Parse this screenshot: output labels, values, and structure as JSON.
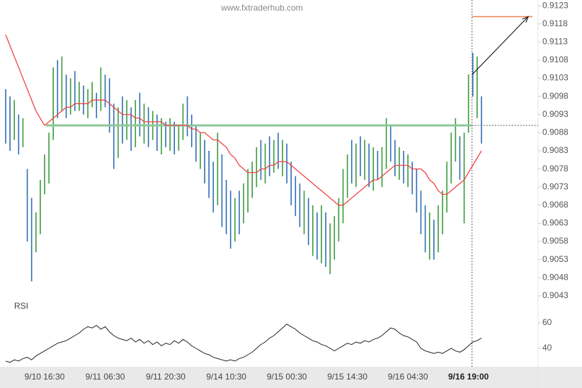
{
  "chart_data": {
    "type": "ohlc",
    "title": "www.fxtraderhub.com",
    "up_color": "#3a9a3a",
    "down_color": "#2f6db3",
    "categories": [
      null,
      null,
      null,
      null,
      null,
      null,
      null,
      null,
      null,
      "9/10 16:30",
      null,
      null,
      null,
      null,
      null,
      null,
      null,
      null,
      null,
      null,
      null,
      null,
      null,
      "9/11 06:30",
      null,
      null,
      null,
      null,
      null,
      null,
      null,
      null,
      null,
      null,
      null,
      null,
      null,
      "9/11 20:30",
      null,
      null,
      null,
      null,
      null,
      null,
      null,
      null,
      null,
      null,
      null,
      null,
      null,
      "9/14 10:30",
      null,
      null,
      null,
      null,
      null,
      null,
      null,
      null,
      null,
      null,
      null,
      null,
      null,
      "9/15 00:30",
      null,
      null,
      null,
      null,
      null,
      null,
      null,
      null,
      null,
      null,
      null,
      null,
      null,
      "9/15 14:30",
      null,
      null,
      null,
      null,
      null,
      null,
      null,
      null,
      null,
      null,
      null,
      null,
      null,
      "9/16 04:30",
      null,
      null,
      null,
      null,
      null,
      null,
      null,
      null,
      null,
      null,
      null,
      null,
      null,
      "9/16 19:00",
      null,
      null,
      null
    ],
    "high": [
      0.91,
      0.9098,
      0.9097,
      0.9093,
      0.9092,
      0.9078,
      0.907,
      0.9066,
      0.9075,
      0.9082,
      0.9088,
      0.9106,
      0.9108,
      0.9109,
      0.9104,
      0.9103,
      0.9105,
      0.9102,
      0.9101,
      0.91,
      0.9102,
      0.9099,
      0.9106,
      0.9104,
      0.9103,
      0.9096,
      0.9095,
      0.9098,
      0.9097,
      0.9095,
      0.9097,
      0.9099,
      0.9096,
      0.9095,
      0.9094,
      0.9093,
      0.9092,
      0.9091,
      0.9092,
      0.9091,
      0.909,
      0.9096,
      0.9098,
      0.9093,
      0.909,
      0.9088,
      0.9086,
      0.9083,
      0.908,
      0.9088,
      0.9082,
      0.9075,
      0.9072,
      0.907,
      0.9072,
      0.9074,
      0.9078,
      0.908,
      0.9084,
      0.9086,
      0.9085,
      0.9087,
      0.9086,
      0.9088,
      0.9086,
      0.9085,
      0.908,
      0.9076,
      0.9074,
      0.9072,
      0.907,
      0.9068,
      0.9066,
      0.9068,
      0.9066,
      0.9063,
      0.9065,
      0.907,
      0.9078,
      0.9082,
      0.9086,
      0.9085,
      0.9087,
      0.9086,
      0.9085,
      0.9084,
      0.9083,
      0.9084,
      0.9092,
      0.909,
      0.9086,
      0.9084,
      0.9083,
      0.9082,
      0.908,
      0.9078,
      0.9072,
      0.9068,
      0.9066,
      0.9064,
      0.9068,
      0.9072,
      0.908,
      0.9088,
      0.9092,
      0.9087,
      0.9088,
      0.9104,
      0.911,
      0.9109,
      0.9098
    ],
    "low": [
      0.9085,
      0.9083,
      0.9086,
      0.9082,
      0.9084,
      0.9058,
      0.9047,
      0.9055,
      0.906,
      0.9071,
      0.9074,
      0.9086,
      0.9092,
      0.9094,
      0.9092,
      0.9093,
      0.9094,
      0.9094,
      0.9093,
      0.9092,
      0.9095,
      0.9092,
      0.9094,
      0.9095,
      0.9088,
      0.9078,
      0.9081,
      0.9085,
      0.9086,
      0.9083,
      0.9084,
      0.9087,
      0.9085,
      0.9084,
      0.9086,
      0.9083,
      0.9082,
      0.9084,
      0.9083,
      0.9082,
      0.9083,
      0.9086,
      0.9087,
      0.9084,
      0.908,
      0.9078,
      0.9074,
      0.907,
      0.9066,
      0.9068,
      0.9062,
      0.906,
      0.9056,
      0.9058,
      0.906,
      0.9063,
      0.9066,
      0.907,
      0.9073,
      0.9075,
      0.9074,
      0.9076,
      0.9077,
      0.9078,
      0.9076,
      0.9074,
      0.9068,
      0.9065,
      0.9062,
      0.906,
      0.9057,
      0.9054,
      0.9053,
      0.9052,
      0.9051,
      0.9049,
      0.9053,
      0.9058,
      0.9063,
      0.907,
      0.9074,
      0.9073,
      0.9076,
      0.9075,
      0.9073,
      0.9072,
      0.9075,
      0.9073,
      0.9078,
      0.908,
      0.9076,
      0.9075,
      0.9074,
      0.9073,
      0.9071,
      0.9066,
      0.906,
      0.9055,
      0.9053,
      0.9053,
      0.9055,
      0.906,
      0.9066,
      0.9074,
      0.908,
      0.9075,
      0.9063,
      0.9088,
      0.9098,
      0.9092,
      0.9085
    ],
    "close": [
      0.9092,
      0.9088,
      0.9094,
      0.9086,
      0.909,
      0.9062,
      0.9052,
      0.9063,
      0.9072,
      0.908,
      0.9086,
      0.9102,
      0.9096,
      0.9106,
      0.9097,
      0.9101,
      0.9098,
      0.91,
      0.9096,
      0.9098,
      0.91,
      0.9095,
      0.9104,
      0.9098,
      0.9092,
      0.9084,
      0.9093,
      0.9089,
      0.9094,
      0.9087,
      0.9092,
      0.909,
      0.9093,
      0.9088,
      0.9091,
      0.9086,
      0.9089,
      0.9086,
      0.909,
      0.9085,
      0.9088,
      0.9094,
      0.909,
      0.9087,
      0.9083,
      0.9085,
      0.9077,
      0.9073,
      0.9071,
      0.9084,
      0.9066,
      0.9063,
      0.906,
      0.9067,
      0.9064,
      0.9071,
      0.9075,
      0.9078,
      0.9082,
      0.9079,
      0.9083,
      0.9081,
      0.9084,
      0.908,
      0.9083,
      0.9076,
      0.9071,
      0.9069,
      0.9064,
      0.9066,
      0.906,
      0.9062,
      0.9056,
      0.9064,
      0.9054,
      0.9058,
      0.9062,
      0.9068,
      0.9075,
      0.908,
      0.9077,
      0.9083,
      0.9079,
      0.9084,
      0.9078,
      0.9081,
      0.9077,
      0.9082,
      0.9088,
      0.9083,
      0.9079,
      0.9081,
      0.9077,
      0.9079,
      0.9074,
      0.907,
      0.9063,
      0.9058,
      0.9061,
      0.9056,
      0.9065,
      0.9069,
      0.9077,
      0.9085,
      0.9088,
      0.9083,
      0.9086,
      0.9102,
      0.91,
      0.9105,
      0.9089
    ],
    "ma": {
      "color": "#ee4444",
      "values": [
        0.9115,
        0.9112,
        0.9109,
        0.9106,
        0.9103,
        0.91,
        0.9097,
        0.9094,
        0.9092,
        0.909,
        0.9091,
        0.9092,
        0.9093,
        0.9094,
        0.9095,
        0.9095,
        0.9096,
        0.9096,
        0.9096,
        0.9096,
        0.9097,
        0.9097,
        0.9097,
        0.9097,
        0.9096,
        0.9095,
        0.9094,
        0.9093,
        0.9093,
        0.9093,
        0.9092,
        0.9092,
        0.9091,
        0.9091,
        0.9091,
        0.9091,
        0.9091,
        0.909,
        0.909,
        0.909,
        0.909,
        0.909,
        0.909,
        0.9089,
        0.9089,
        0.9088,
        0.9088,
        0.9087,
        0.9086,
        0.9086,
        0.9085,
        0.9084,
        0.9082,
        0.9081,
        0.9079,
        0.9078,
        0.9077,
        0.9077,
        0.9077,
        0.9078,
        0.9078,
        0.9079,
        0.9079,
        0.908,
        0.908,
        0.908,
        0.9079,
        0.9078,
        0.9077,
        0.9076,
        0.9075,
        0.9074,
        0.9073,
        0.9072,
        0.9071,
        0.907,
        0.9069,
        0.9068,
        0.9068,
        0.9069,
        0.907,
        0.9071,
        0.9072,
        0.9073,
        0.9074,
        0.9075,
        0.9075,
        0.9076,
        0.9077,
        0.9078,
        0.9079,
        0.9079,
        0.9079,
        0.9079,
        0.9078,
        0.9078,
        0.9078,
        0.9077,
        0.9075,
        0.9074,
        0.9072,
        0.9071,
        0.9071,
        0.9072,
        0.9073,
        0.9074,
        0.9075,
        0.9077,
        0.9079,
        0.9081,
        0.9083
      ]
    },
    "ylim": [
      0.9042,
      0.9124
    ],
    "yticks": [
      0.9123,
      0.9118,
      0.9113,
      0.9108,
      0.9103,
      0.9098,
      0.9093,
      0.9088,
      0.9083,
      0.9078,
      0.9073,
      0.9068,
      0.9063,
      0.9058,
      0.9053,
      0.9048,
      0.9043
    ],
    "support_level": 0.909,
    "support_color": "#8cc79a",
    "target_level": 0.912,
    "target_color": "#f08050",
    "arrow_from": 0.9104,
    "rsi": {
      "label": "RSI",
      "color": "#222",
      "ylim": [
        25,
        75
      ],
      "yticks": [
        60,
        40
      ],
      "values": [
        30,
        29,
        31,
        30,
        32,
        33,
        31,
        34,
        36,
        38,
        40,
        42,
        44,
        45,
        46,
        48,
        50,
        52,
        55,
        57,
        56,
        58,
        55,
        57,
        53,
        50,
        48,
        47,
        46,
        48,
        45,
        47,
        44,
        46,
        43,
        45,
        42,
        44,
        43,
        46,
        44,
        47,
        45,
        42,
        40,
        38,
        36,
        35,
        33,
        32,
        31,
        30,
        31,
        30,
        32,
        33,
        35,
        37,
        40,
        43,
        45,
        48,
        50,
        53,
        56,
        59,
        57,
        55,
        52,
        50,
        48,
        46,
        45,
        43,
        42,
        40,
        38,
        40,
        42,
        44,
        43,
        45,
        44,
        46,
        45,
        47,
        48,
        50,
        53,
        56,
        55,
        52,
        50,
        49,
        47,
        45,
        40,
        38,
        37,
        36,
        37,
        36,
        38,
        40,
        38,
        37,
        39,
        42,
        45,
        46,
        48
      ]
    }
  }
}
